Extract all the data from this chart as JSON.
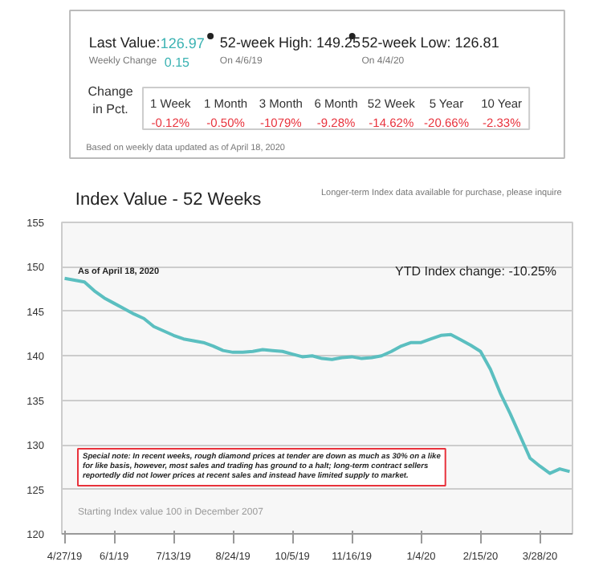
{
  "chart_data": [
    {
      "type": "other",
      "ylabel": "Change\nin Pct.",
      "categories": [
        "1 Week",
        "1 Month",
        "3 Month",
        "6 Month",
        "52 Week",
        "5 Year",
        "10 Year"
      ],
      "value_labels": [
        "-0.12%",
        "-0.50%",
        "-1079%",
        "-9.28%",
        "-14.62%",
        "-20.66%",
        "-2.33%"
      ],
      "color": "#e8323c",
      "annotations": [
        "Last Value:",
        "126.97",
        "Weekly Change",
        "0.15",
        "52-week High: 149.25",
        "On 4/6/19",
        "52-week Low: 126.81",
        "On 4/4/20",
        "Based on weekly data updated as of April 18, 2020"
      ]
    },
    {
      "type": "line",
      "title": "Index Value - 52 Weeks",
      "subtitle": "Longer-term Index data available for purchase, please inquire",
      "annotations": [
        "As of April 18, 2020",
        "YTD Index change: -10.25%",
        "Special note: In recent weeks, rough diamond prices at tender are down as much as 30% on a like for like basis, however, most sales and trading has ground to a halt; long-term contract sellers reportedly did not lower prices at recent sales and instead have limited supply to market.",
        "Starting Index value 100 in December 2007"
      ],
      "x": [
        "2019-04-27",
        "2019-05-04",
        "2019-05-11",
        "2019-05-18",
        "2019-05-25",
        "2019-06-01",
        "2019-06-08",
        "2019-06-15",
        "2019-06-22",
        "2019-06-29",
        "2019-07-06",
        "2019-07-13",
        "2019-07-20",
        "2019-07-27",
        "2019-08-03",
        "2019-08-10",
        "2019-08-17",
        "2019-08-24",
        "2019-08-31",
        "2019-09-07",
        "2019-09-14",
        "2019-09-21",
        "2019-09-28",
        "2019-10-05",
        "2019-10-12",
        "2019-10-19",
        "2019-10-26",
        "2019-11-02",
        "2019-11-09",
        "2019-11-16",
        "2019-11-23",
        "2019-11-30",
        "2019-12-07",
        "2019-12-14",
        "2019-12-21",
        "2019-12-28",
        "2020-01-04",
        "2020-01-11",
        "2020-01-18",
        "2020-01-25",
        "2020-02-01",
        "2020-02-08",
        "2020-02-15",
        "2020-02-22",
        "2020-02-29",
        "2020-03-07",
        "2020-03-14",
        "2020-03-21",
        "2020-03-28",
        "2020-04-04",
        "2020-04-11",
        "2020-04-18"
      ],
      "series": [
        {
          "color": "#5bbfc0",
          "values": [
            148.7,
            148.5,
            148.3,
            147.3,
            146.5,
            145.9,
            145.3,
            144.7,
            144.2,
            143.3,
            142.8,
            142.3,
            141.9,
            141.7,
            141.5,
            141.1,
            140.6,
            140.4,
            140.4,
            140.5,
            140.7,
            140.6,
            140.5,
            140.2,
            139.9,
            140.0,
            139.7,
            139.6,
            139.8,
            139.9,
            139.7,
            139.8,
            140.0,
            140.5,
            141.1,
            141.5,
            141.5,
            141.9,
            142.3,
            142.4,
            141.8,
            141.2,
            140.5,
            138.5,
            135.8,
            133.5,
            131.0,
            128.5,
            127.6,
            126.8,
            127.3,
            127.0
          ]
        }
      ],
      "xlim": [
        "2019-04-25",
        "2020-04-20"
      ],
      "xticks": [
        {
          "value": "2019-04-27",
          "label": "4/27/19"
        },
        {
          "value": "2019-06-01",
          "label": "6/1/19"
        },
        {
          "value": "2019-07-13",
          "label": "7/13/19"
        },
        {
          "value": "2019-08-24",
          "label": "8/24/19"
        },
        {
          "value": "2019-10-05",
          "label": "10/5/19"
        },
        {
          "value": "2019-11-16",
          "label": "11/16/19"
        },
        {
          "value": "2020-01-04",
          "label": "1/4/20"
        },
        {
          "value": "2020-02-15",
          "label": "2/15/20"
        },
        {
          "value": "2020-03-28",
          "label": "3/28/20"
        }
      ],
      "ylim": [
        120,
        155
      ],
      "yticks": [
        120,
        125,
        130,
        135,
        140,
        145,
        150,
        155
      ],
      "grid": "y"
    }
  ]
}
